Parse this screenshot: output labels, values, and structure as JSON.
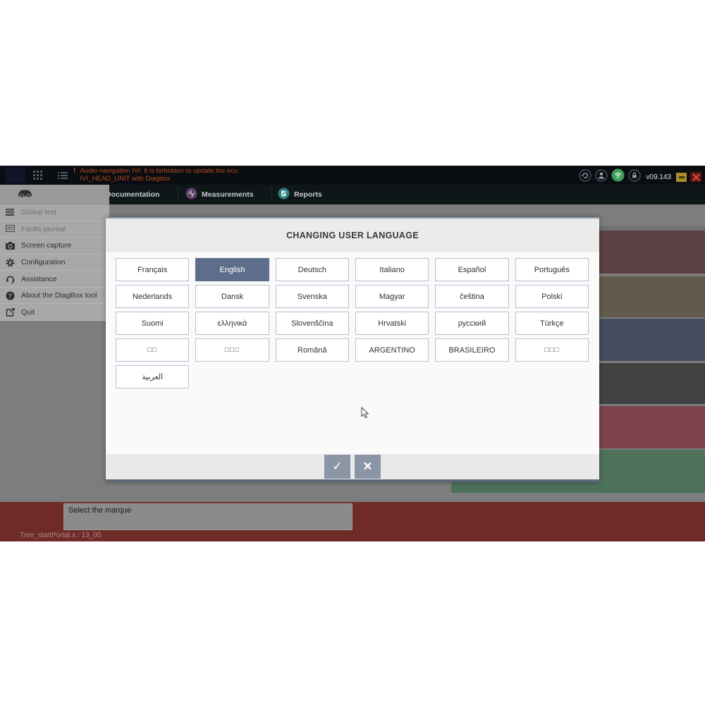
{
  "topbar": {
    "warning_icon": "!",
    "warning_line1": "Audio-navigation IVI: It is forbidden to update the ecu",
    "warning_line2": "IVI_HEAD_UNIT with Diagbox",
    "version": "v09.143"
  },
  "menubar": {
    "items": [
      {
        "label": "Documentation",
        "icon": "documentation-icon"
      },
      {
        "label": "Measurements",
        "icon": "measurements-icon",
        "icon_color": "#5d4368"
      },
      {
        "label": "Reports",
        "icon": "reports-icon",
        "icon_color": "#2e7d7d"
      }
    ]
  },
  "sidebar": {
    "items": [
      {
        "label": "Global test",
        "icon": "global-test-icon",
        "disabled": true
      },
      {
        "label": "Faults journal",
        "icon": "faults-journal-icon",
        "disabled": true
      },
      {
        "label": "Screen capture",
        "icon": "camera-icon",
        "disabled": false
      },
      {
        "label": "Configuration",
        "icon": "gear-icon",
        "disabled": false
      },
      {
        "label": "Assistance",
        "icon": "headset-icon",
        "disabled": false
      },
      {
        "label": "About the DiagBox tool",
        "icon": "help-icon",
        "disabled": false
      },
      {
        "label": "Quit",
        "icon": "exit-icon",
        "disabled": false
      }
    ]
  },
  "dialog": {
    "title": "CHANGING USER LANGUAGE",
    "languages": [
      {
        "label": "Français"
      },
      {
        "label": "English",
        "selected": true
      },
      {
        "label": "Deutsch"
      },
      {
        "label": "Italiano"
      },
      {
        "label": "Español"
      },
      {
        "label": "Português"
      },
      {
        "label": "Nederlands"
      },
      {
        "label": "Dansk"
      },
      {
        "label": "Svenska"
      },
      {
        "label": "Magyar"
      },
      {
        "label": "čeština"
      },
      {
        "label": "Polski"
      },
      {
        "label": "Suomi"
      },
      {
        "label": "ελληνικά"
      },
      {
        "label": "Slovenščina"
      },
      {
        "label": "Hrvatski"
      },
      {
        "label": "русский"
      },
      {
        "label": "Türkçe"
      },
      {
        "label": "□□",
        "tofu": true
      },
      {
        "label": "□□□",
        "tofu": true
      },
      {
        "label": "Română"
      },
      {
        "label": "ARGENTINO"
      },
      {
        "label": "BRASILEIRO"
      },
      {
        "label": "□□□",
        "tofu": true
      },
      {
        "label": "العربية"
      }
    ],
    "confirm_label": "✓",
    "cancel_label": "×"
  },
  "status": {
    "message": "Select the marque",
    "footer": "Tree_startPortal.s : 13_00"
  },
  "tiles": [
    {
      "name": "tile-1",
      "color": "#5b4144"
    },
    {
      "name": "tile-2",
      "color": "#615b4e"
    },
    {
      "name": "tile-3",
      "color": "#454e5e"
    },
    {
      "name": "tile-4",
      "color": "#424242"
    },
    {
      "name": "tile-5",
      "color": "#7c434d"
    },
    {
      "name": "tile-6",
      "color": "#4d7159"
    }
  ],
  "colors": {
    "selected_language_bg": "#5d6e8c",
    "warning_text": "#b44b1e",
    "wifi_green": "#3f9e5a",
    "status_band": "#6f2b28",
    "workspace_gray": "#7d7d7d"
  }
}
